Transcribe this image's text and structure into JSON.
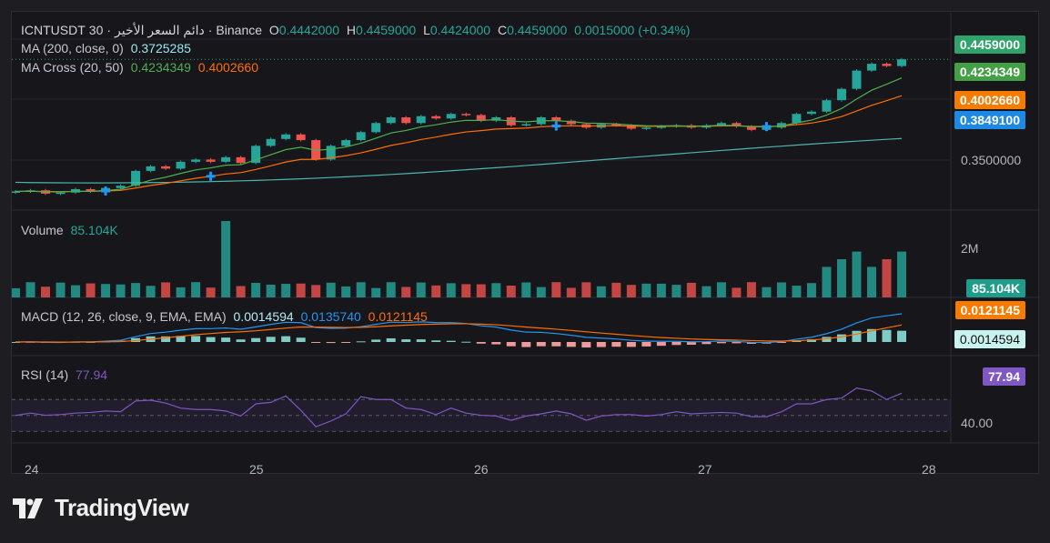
{
  "header": {
    "symbol": "ICNTUSDT",
    "interval": "30",
    "descriptor": "دائم السعر الأخير",
    "exchange": "Binance",
    "ohlc": {
      "o_label": "O",
      "o": "0.4442000",
      "h_label": "H",
      "h": "0.4459000",
      "l_label": "L",
      "l": "0.4424000",
      "c_label": "C",
      "c": "0.4459000"
    },
    "change": "0.0015000 (+0.34%)"
  },
  "ma200": {
    "label": "MA (200, close, 0)",
    "value": "0.3725285"
  },
  "macross": {
    "label": "MA Cross (20, 50)",
    "fast": "0.4234349",
    "slow": "0.4002660"
  },
  "volume": {
    "label": "Volume",
    "value": "85.104K",
    "axis": "2M"
  },
  "macd": {
    "label": "MACD (12, 26, close, 9, EMA, EMA)",
    "hist": "0.0014594",
    "macd": "0.0135740",
    "signal": "0.0121145"
  },
  "rsi": {
    "label": "RSI (14)",
    "value": "77.94",
    "axis": "40.00"
  },
  "price_axis": {
    "tick": "0.3500000"
  },
  "tags": {
    "last": "0.4459000",
    "fast": "0.4234349",
    "slow": "0.4002660",
    "cross": "0.3849100",
    "vol": "85.104K",
    "signal": "0.0121145",
    "hist": "0.0014594",
    "rsi": "77.94"
  },
  "x_axis": [
    "24",
    "25",
    "26",
    "27",
    "28"
  ],
  "brand": "TradingView",
  "colors": {
    "up": "#26a69a",
    "down": "#ef5350",
    "ma200": "#4db6ac",
    "fast": "#4caf50",
    "slow": "#ff6d00",
    "macd": "#2196f3",
    "signal": "#ff6d00",
    "rsi": "#7e57c2",
    "cross": "#2196f3"
  },
  "chart_data": {
    "type": "line",
    "series": [
      {
        "name": "MA (200, close, 0)",
        "last": 0.3725285
      },
      {
        "name": "MA Cross (20, 50)",
        "values": [
          0.4234349,
          0.400266
        ]
      }
    ],
    "price_range": [
      0.32,
      0.47
    ],
    "price_x": [
      "24",
      "25",
      "26",
      "27",
      "28"
    ],
    "price_close": [
      0.33,
      0.331,
      0.328,
      0.329,
      0.332,
      0.33,
      0.333,
      0.335,
      0.348,
      0.352,
      0.35,
      0.356,
      0.358,
      0.356,
      0.36,
      0.355,
      0.37,
      0.376,
      0.38,
      0.375,
      0.358,
      0.37,
      0.375,
      0.382,
      0.39,
      0.395,
      0.39,
      0.396,
      0.394,
      0.398,
      0.397,
      0.392,
      0.395,
      0.388,
      0.389,
      0.395,
      0.392,
      0.389,
      0.386,
      0.389,
      0.388,
      0.385,
      0.386,
      0.387,
      0.388,
      0.386,
      0.388,
      0.39,
      0.387,
      0.384,
      0.386,
      0.39,
      0.398,
      0.4,
      0.41,
      0.42,
      0.436,
      0.442,
      0.44,
      0.4459
    ],
    "volume_range": [
      0,
      2
    ],
    "volume_last": "85.104K",
    "macd_values": {
      "hist": 0.0014594,
      "macd": 0.013574,
      "signal": 0.0121145
    },
    "rsi_value": 77.94,
    "rsi_levels": [
      70,
      50,
      30
    ]
  }
}
